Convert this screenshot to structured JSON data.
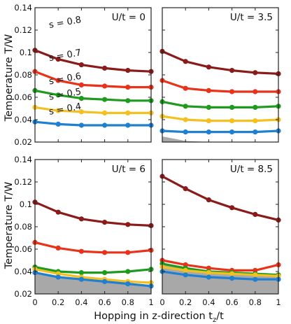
{
  "chart_data": {
    "type": "line",
    "ylabel": "Temperature T/W",
    "xlabel": "Hopping in z-direction t",
    "xlabel_sub": "z",
    "xlabel_suffix": "/t",
    "xlim": [
      0,
      1
    ],
    "ylim": [
      0.02,
      0.14
    ],
    "xticks": [
      "0",
      "0.2",
      "0.4",
      "0.6",
      "0.8",
      "1"
    ],
    "yticks": [
      "0.02",
      "0.04",
      "0.06",
      "0.08",
      "0.1",
      "0.12",
      "0.14"
    ],
    "x": [
      0,
      0.2,
      0.4,
      0.6,
      0.8,
      1
    ],
    "colors": {
      "s08": "#8b1a1a",
      "s07": "#e8321a",
      "s06": "#1e9a1e",
      "s05": "#f4c020",
      "s04": "#1f7fd0",
      "shade": "#a8a8a8"
    },
    "panels": [
      {
        "title": "U/t = 0",
        "series": [
          {
            "name": "s = 0.8",
            "color": "s08",
            "values": [
              0.102,
              0.094,
              0.089,
              0.086,
              0.084,
              0.083
            ]
          },
          {
            "name": "s = 0.7",
            "color": "s07",
            "values": [
              0.083,
              0.075,
              0.071,
              0.07,
              0.069,
              0.069
            ]
          },
          {
            "name": "s = 0.6",
            "color": "s06",
            "values": [
              0.066,
              0.062,
              0.059,
              0.058,
              0.057,
              0.057
            ]
          },
          {
            "name": "s = 0.5",
            "color": "s05",
            "values": [
              0.051,
              0.048,
              0.047,
              0.046,
              0.046,
              0.046
            ]
          },
          {
            "name": "s = 0.4",
            "color": "s04",
            "values": [
              0.038,
              0.036,
              0.035,
              0.035,
              0.035,
              0.035
            ]
          }
        ],
        "shaded": []
      },
      {
        "title": "U/t = 3.5",
        "series": [
          {
            "color": "s08",
            "values": [
              0.101,
              0.092,
              0.087,
              0.084,
              0.082,
              0.081
            ]
          },
          {
            "color": "s07",
            "values": [
              0.075,
              0.068,
              0.066,
              0.065,
              0.065,
              0.065
            ]
          },
          {
            "color": "s06",
            "values": [
              0.056,
              0.052,
              0.051,
              0.051,
              0.051,
              0.052
            ]
          },
          {
            "color": "s05",
            "values": [
              0.043,
              0.04,
              0.039,
              0.039,
              0.039,
              0.04
            ]
          },
          {
            "color": "s04",
            "values": [
              0.03,
              0.029,
              0.029,
              0.029,
              0.029,
              0.03
            ]
          }
        ],
        "shaded": [
          0.025,
          0.021,
          0.02,
          0.02,
          0.02,
          0.02
        ]
      },
      {
        "title": "U/t = 6",
        "series": [
          {
            "color": "s08",
            "values": [
              0.102,
              0.093,
              0.087,
              0.084,
              0.082,
              0.081
            ]
          },
          {
            "color": "s07",
            "values": [
              0.066,
              0.061,
              0.058,
              0.057,
              0.057,
              0.059
            ]
          },
          {
            "color": "s06",
            "values": [
              0.044,
              0.04,
              0.039,
              0.039,
              0.04,
              0.042
            ]
          },
          {
            "color": "s05",
            "values": [
              0.042,
              0.038,
              0.035,
              0.033,
              0.031,
              0.03
            ]
          },
          {
            "color": "s04",
            "values": [
              0.039,
              0.035,
              0.033,
              0.031,
              0.029,
              0.027
            ]
          }
        ],
        "shaded": [
          0.04,
          0.036,
          0.034,
          0.032,
          0.03,
          0.028
        ]
      },
      {
        "title": "U/t = 8.5",
        "series": [
          {
            "color": "s08",
            "values": [
              0.125,
              0.114,
              0.104,
              0.097,
              0.091,
              0.086
            ]
          },
          {
            "color": "s07",
            "values": [
              0.05,
              0.046,
              0.043,
              0.041,
              0.041,
              0.046
            ]
          },
          {
            "color": "s06",
            "values": [
              0.047,
              0.043,
              0.04,
              0.039,
              0.038,
              0.037
            ]
          },
          {
            "color": "s05",
            "values": [
              0.044,
              0.041,
              0.039,
              0.038,
              0.037,
              0.036
            ]
          },
          {
            "color": "s04",
            "values": [
              0.04,
              0.037,
              0.035,
              0.034,
              0.033,
              0.033
            ]
          }
        ],
        "shaded": [
          0.047,
          0.043,
          0.04,
          0.038,
          0.037,
          0.035
        ]
      }
    ]
  }
}
